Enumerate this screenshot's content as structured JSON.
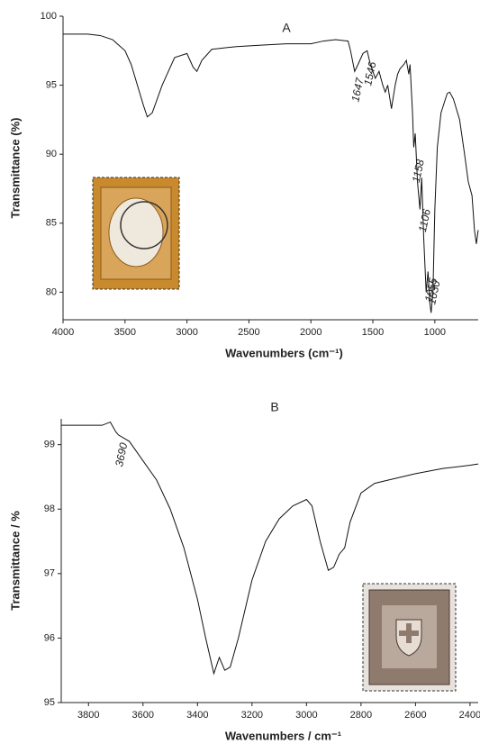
{
  "chart_data": [
    {
      "type": "line",
      "panel_label": "A",
      "y_label": "Transmittance (%)",
      "x_label": "Wavenumbers (cm⁻¹)",
      "x": [
        4000,
        3800,
        3700,
        3600,
        3500,
        3450,
        3400,
        3350,
        3320,
        3280,
        3200,
        3100,
        3000,
        2950,
        2920,
        2880,
        2800,
        2600,
        2400,
        2200,
        2000,
        1900,
        1800,
        1700,
        1680,
        1647,
        1620,
        1580,
        1546,
        1520,
        1480,
        1450,
        1420,
        1400,
        1380,
        1350,
        1320,
        1300,
        1280,
        1250,
        1230,
        1210,
        1200,
        1180,
        1170,
        1158,
        1140,
        1120,
        1106,
        1090,
        1070,
        1055,
        1040,
        1030,
        1015,
        1000,
        980,
        950,
        900,
        880,
        850,
        800,
        760,
        730,
        700,
        680,
        665,
        650
      ],
      "series": [
        {
          "color": "#111111",
          "values": [
            98.7,
            98.7,
            98.6,
            98.3,
            97.5,
            96.5,
            95.0,
            93.5,
            92.7,
            93.0,
            95.0,
            97.0,
            97.3,
            96.3,
            96.0,
            96.8,
            97.6,
            97.8,
            97.9,
            98.0,
            98.0,
            98.2,
            98.3,
            98.2,
            97.5,
            96.0,
            96.5,
            97.3,
            97.5,
            96.5,
            95.5,
            96.0,
            95.0,
            94.5,
            95.0,
            93.3,
            95.0,
            95.8,
            96.2,
            96.5,
            96.8,
            95.8,
            96.5,
            93.0,
            90.5,
            91.5,
            88.0,
            86.0,
            88.3,
            84.0,
            80.0,
            81.5,
            79.2,
            78.5,
            80.0,
            86.0,
            90.5,
            93.0,
            94.4,
            94.5,
            94.0,
            92.5,
            90.0,
            88.0,
            87.0,
            84.5,
            83.5,
            84.5
          ]
        }
      ],
      "xlim": [
        4000,
        650
      ],
      "ylim": [
        78,
        100
      ],
      "xticks": [
        4000,
        3500,
        3000,
        2500,
        2000,
        1500,
        1000
      ],
      "yticks": [
        80,
        85,
        90,
        95,
        100
      ],
      "peak_labels": [
        1647,
        1546,
        1158,
        1106,
        1055,
        1030
      ]
    },
    {
      "type": "line",
      "panel_label": "B",
      "y_label": "Transmittance / %",
      "x_label": "Wavenumbers / cm⁻¹",
      "x": [
        3900,
        3800,
        3750,
        3720,
        3700,
        3690,
        3650,
        3600,
        3550,
        3500,
        3450,
        3400,
        3370,
        3340,
        3320,
        3300,
        3280,
        3250,
        3200,
        3150,
        3100,
        3050,
        3000,
        2980,
        2950,
        2920,
        2900,
        2880,
        2860,
        2840,
        2800,
        2750,
        2700,
        2600,
        2500,
        2400,
        2370
      ],
      "series": [
        {
          "color": "#111111",
          "values": [
            99.3,
            99.3,
            99.3,
            99.35,
            99.2,
            99.15,
            99.05,
            98.75,
            98.45,
            98.0,
            97.4,
            96.6,
            96.0,
            95.45,
            95.7,
            95.5,
            95.55,
            96.0,
            96.9,
            97.5,
            97.85,
            98.05,
            98.15,
            98.05,
            97.5,
            97.05,
            97.1,
            97.3,
            97.4,
            97.8,
            98.25,
            98.4,
            98.45,
            98.55,
            98.63,
            98.68,
            98.7
          ]
        }
      ],
      "xlim": [
        3900,
        2370
      ],
      "ylim": [
        95,
        99.4
      ],
      "xticks": [
        3800,
        3600,
        3400,
        3200,
        3000,
        2800,
        2600,
        2400
      ],
      "yticks": [
        95,
        96,
        97,
        98,
        99
      ],
      "peak_labels": [
        3690
      ]
    }
  ]
}
